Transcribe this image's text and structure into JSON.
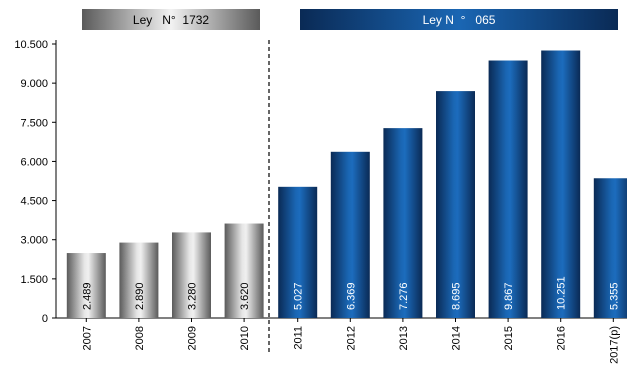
{
  "chart_data": {
    "type": "bar",
    "title": "",
    "xlabel": "",
    "ylabel": "",
    "categories": [
      "2007",
      "2008",
      "2009",
      "2010",
      "2011",
      "2012",
      "2013",
      "2014",
      "2015",
      "2016",
      "2017(p)"
    ],
    "values": [
      2489,
      2890,
      3280,
      3620,
      5027,
      6369,
      7276,
      8695,
      9867,
      10251,
      5355
    ],
    "value_labels": [
      "2.489",
      "2.890",
      "3.280",
      "3.620",
      "5.027",
      "6.369",
      "7.276",
      "8.695",
      "9.867",
      "10.251",
      "5.355"
    ],
    "groups": [
      {
        "label": "Ley   N°  1732",
        "color": "#8c8c8c",
        "categories": [
          "2007",
          "2008",
          "2009",
          "2010"
        ]
      },
      {
        "label": "Ley N  °   065",
        "color": "#0d4d8c",
        "categories": [
          "2011",
          "2012",
          "2013",
          "2014",
          "2015",
          "2016",
          "2017(p)"
        ]
      }
    ],
    "ylim": [
      0,
      10500
    ],
    "yticks": [
      0,
      1500,
      3000,
      4500,
      6000,
      7500,
      9000,
      10500
    ],
    "ytick_labels": [
      "0",
      "1.500",
      "3.000",
      "4.500",
      "6.000",
      "7.500",
      "9.000",
      "10.500"
    ],
    "grid": false,
    "divider": "dashed vertical line between 2010 and 2011"
  }
}
